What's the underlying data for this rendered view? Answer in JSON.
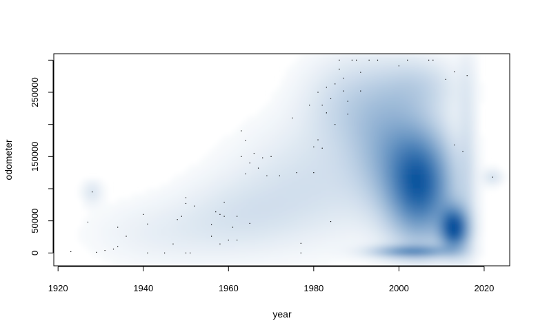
{
  "chart_data": {
    "type": "heatmap",
    "title": "",
    "xlabel": "year",
    "ylabel": "odometer",
    "xlim": [
      1919,
      2026
    ],
    "ylim": [
      -20000,
      310000
    ],
    "x_ticks": [
      1920,
      1940,
      1960,
      1980,
      2000,
      2020
    ],
    "y_ticks": [
      0,
      50000,
      150000,
      250000
    ],
    "x_tick_labels": [
      "1920",
      "1940",
      "1960",
      "1980",
      "2000",
      "2020"
    ],
    "y_tick_labels": [
      "0",
      "50000",
      "150000",
      "250000"
    ],
    "colormap": [
      "#ffffff",
      "#08519c"
    ],
    "density_regions": [
      {
        "x": 2005,
        "y": 105000,
        "sx": 5,
        "sy": 55000,
        "weight": 0.85
      },
      {
        "x": 2013,
        "y": 38000,
        "sx": 2.2,
        "sy": 22000,
        "weight": 0.95
      },
      {
        "x": 2003,
        "y": 2000,
        "sx": 6,
        "sy": 6000,
        "weight": 0.55
      },
      {
        "x": 1998,
        "y": 160000,
        "sx": 6,
        "sy": 60000,
        "weight": 0.3
      },
      {
        "x": 1990,
        "y": 230000,
        "sx": 8,
        "sy": 50000,
        "weight": 0.18
      },
      {
        "x": 2005,
        "y": 260000,
        "sx": 6,
        "sy": 30000,
        "weight": 0.15
      },
      {
        "x": 1980,
        "y": 110000,
        "sx": 12,
        "sy": 60000,
        "weight": 0.12
      },
      {
        "x": 1963,
        "y": 60000,
        "sx": 10,
        "sy": 40000,
        "weight": 0.09
      },
      {
        "x": 1945,
        "y": 30000,
        "sx": 12,
        "sy": 35000,
        "weight": 0.06
      },
      {
        "x": 2016,
        "y": 150000,
        "sx": 1.5,
        "sy": 120000,
        "weight": 0.1
      },
      {
        "x": 1928,
        "y": 95000,
        "sx": 1.5,
        "sy": 12000,
        "weight": 0.1
      },
      {
        "x": 2022,
        "y": 118000,
        "sx": 1.5,
        "sy": 8000,
        "weight": 0.12
      }
    ],
    "outliers": [
      [
        1923,
        2000
      ],
      [
        1927,
        48000
      ],
      [
        1928,
        95000
      ],
      [
        1929,
        1000
      ],
      [
        1931,
        4000
      ],
      [
        1933,
        6000
      ],
      [
        1934,
        40000
      ],
      [
        1934,
        10000
      ],
      [
        1936,
        26000
      ],
      [
        1940,
        60000
      ],
      [
        1941,
        45000
      ],
      [
        1941,
        0
      ],
      [
        1945,
        0
      ],
      [
        1947,
        14000
      ],
      [
        1948,
        52000
      ],
      [
        1949,
        57000
      ],
      [
        1950,
        86000
      ],
      [
        1950,
        77000
      ],
      [
        1950,
        0
      ],
      [
        1951,
        0
      ],
      [
        1952,
        73000
      ],
      [
        1956,
        44000
      ],
      [
        1956,
        26000
      ],
      [
        1957,
        64000
      ],
      [
        1958,
        60000
      ],
      [
        1958,
        14000
      ],
      [
        1959,
        79000
      ],
      [
        1959,
        57000
      ],
      [
        1960,
        20000
      ],
      [
        1961,
        40000
      ],
      [
        1962,
        20000
      ],
      [
        1962,
        57000
      ],
      [
        1963,
        150000
      ],
      [
        1963,
        190000
      ],
      [
        1964,
        175000
      ],
      [
        1964,
        123000
      ],
      [
        1965,
        140000
      ],
      [
        1965,
        46000
      ],
      [
        1966,
        155000
      ],
      [
        1967,
        132000
      ],
      [
        1968,
        148000
      ],
      [
        1969,
        120000
      ],
      [
        1970,
        150000
      ],
      [
        1972,
        120000
      ],
      [
        1975,
        210000
      ],
      [
        1976,
        125000
      ],
      [
        1977,
        15000
      ],
      [
        1977,
        0
      ],
      [
        1979,
        230000
      ],
      [
        1980,
        165000
      ],
      [
        1980,
        125000
      ],
      [
        1981,
        250000
      ],
      [
        1981,
        176000
      ],
      [
        1982,
        230000
      ],
      [
        1982,
        163000
      ],
      [
        1983,
        258000
      ],
      [
        1983,
        218000
      ],
      [
        1984,
        240000
      ],
      [
        1984,
        49000
      ],
      [
        1985,
        200000
      ],
      [
        1985,
        263000
      ],
      [
        1986,
        286000
      ],
      [
        1986,
        300000
      ],
      [
        1987,
        252000
      ],
      [
        1987,
        272000
      ],
      [
        1988,
        236000
      ],
      [
        1988,
        216000
      ],
      [
        1989,
        300000
      ],
      [
        1990,
        300000
      ],
      [
        1991,
        252000
      ],
      [
        1991,
        281000
      ],
      [
        1993,
        300000
      ],
      [
        1995,
        300000
      ],
      [
        2000,
        291000
      ],
      [
        2002,
        300000
      ],
      [
        2007,
        300000
      ],
      [
        2008,
        300000
      ],
      [
        2011,
        270000
      ],
      [
        2013,
        282000
      ],
      [
        2013,
        168000
      ],
      [
        2015,
        158000
      ],
      [
        2016,
        276000
      ],
      [
        2022,
        118000
      ]
    ]
  }
}
